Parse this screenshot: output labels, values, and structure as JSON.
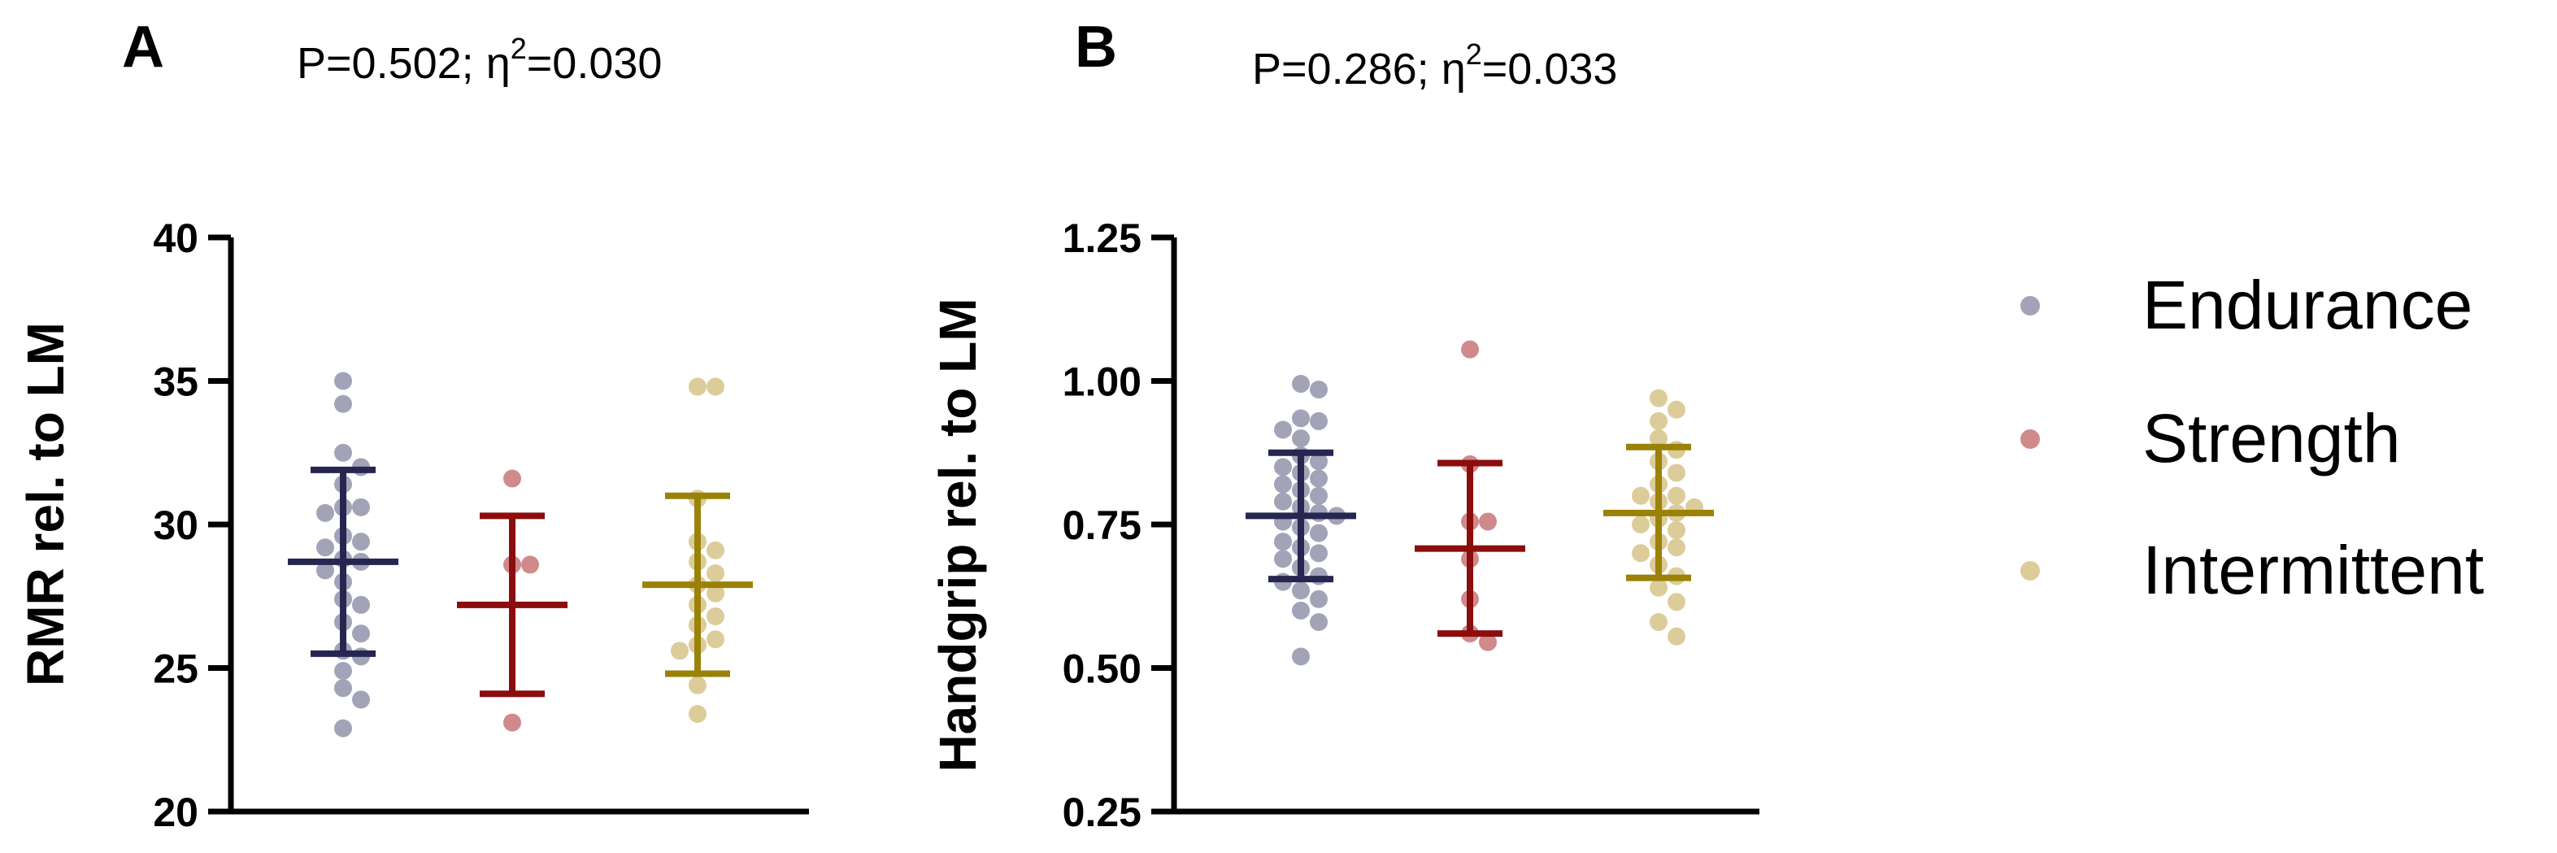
{
  "colors": {
    "endurance_point": "#a3a3b8",
    "strength_point": "#d08a8c",
    "intermittent_point": "#dccc9a",
    "endurance_bar": "#262650",
    "strength_bar": "#8b0d0d",
    "intermittent_bar": "#9a8208",
    "axis": "#000000"
  },
  "legend": [
    {
      "name": "Endurance",
      "color": "#a3a3b8"
    },
    {
      "name": "Strength",
      "color": "#d08a8c"
    },
    {
      "name": "Intermittent",
      "color": "#dccc9a"
    }
  ],
  "chart_data": [
    {
      "type": "scatter",
      "panel": "A",
      "stat_text": {
        "p_part": "P=0.502; η",
        "sup": "2",
        "eta_part": "=0.030"
      },
      "ylabel": "RMR rel. to LM",
      "xlabel": "",
      "ylim": [
        20,
        40
      ],
      "yticks": [
        20,
        25,
        30,
        35,
        40
      ],
      "ytick_labels": [
        "20",
        "25",
        "30",
        "35",
        "40"
      ],
      "series": [
        {
          "name": "Endurance",
          "mean": 28.7,
          "sd_low": 25.5,
          "sd_high": 31.9,
          "values": [
            35.0,
            34.2,
            32.5,
            32.0,
            31.4,
            30.6,
            30.6,
            30.4,
            29.6,
            29.4,
            29.2,
            28.8,
            28.7,
            28.4,
            28.0,
            27.4,
            27.2,
            26.6,
            26.2,
            25.6,
            25.4,
            24.9,
            24.3,
            23.9,
            22.9
          ]
        },
        {
          "name": "Strength",
          "mean": 27.2,
          "sd_low": 24.1,
          "sd_high": 30.3,
          "values": [
            31.6,
            28.6,
            28.6,
            23.1
          ]
        },
        {
          "name": "Intermittent",
          "mean": 27.9,
          "sd_low": 24.8,
          "sd_high": 31.0,
          "values": [
            34.8,
            34.8,
            30.9,
            29.4,
            29.1,
            28.7,
            28.3,
            27.9,
            27.6,
            27.2,
            26.8,
            26.5,
            26.0,
            25.8,
            25.6,
            24.4,
            23.4
          ]
        }
      ]
    },
    {
      "type": "scatter",
      "panel": "B",
      "stat_text": {
        "p_part": "P=0.286; η",
        "sup": "2",
        "eta_part": "=0.033"
      },
      "ylabel": "Handgrip rel. to LM",
      "xlabel": "",
      "ylim": [
        0.25,
        1.25
      ],
      "yticks": [
        0.25,
        0.5,
        0.75,
        1.0,
        1.25
      ],
      "ytick_labels": [
        "0.25",
        "0.50",
        "0.75",
        "1.00",
        "1.25"
      ],
      "series": [
        {
          "name": "Endurance",
          "mean": 0.765,
          "sd_low": 0.655,
          "sd_high": 0.875,
          "values": [
            0.995,
            0.985,
            0.935,
            0.93,
            0.915,
            0.9,
            0.87,
            0.86,
            0.85,
            0.84,
            0.83,
            0.82,
            0.81,
            0.8,
            0.79,
            0.78,
            0.77,
            0.765,
            0.755,
            0.745,
            0.735,
            0.72,
            0.71,
            0.7,
            0.69,
            0.675,
            0.66,
            0.65,
            0.635,
            0.62,
            0.6,
            0.58,
            0.52
          ]
        },
        {
          "name": "Strength",
          "mean": 0.708,
          "sd_low": 0.56,
          "sd_high": 0.857,
          "values": [
            1.055,
            0.855,
            0.755,
            0.755,
            0.69,
            0.62,
            0.56,
            0.545
          ]
        },
        {
          "name": "Intermittent",
          "mean": 0.77,
          "sd_low": 0.657,
          "sd_high": 0.885,
          "values": [
            0.97,
            0.95,
            0.93,
            0.9,
            0.88,
            0.86,
            0.84,
            0.82,
            0.8,
            0.8,
            0.79,
            0.78,
            0.77,
            0.76,
            0.75,
            0.74,
            0.72,
            0.71,
            0.7,
            0.68,
            0.66,
            0.64,
            0.615,
            0.58,
            0.555
          ]
        }
      ]
    }
  ]
}
